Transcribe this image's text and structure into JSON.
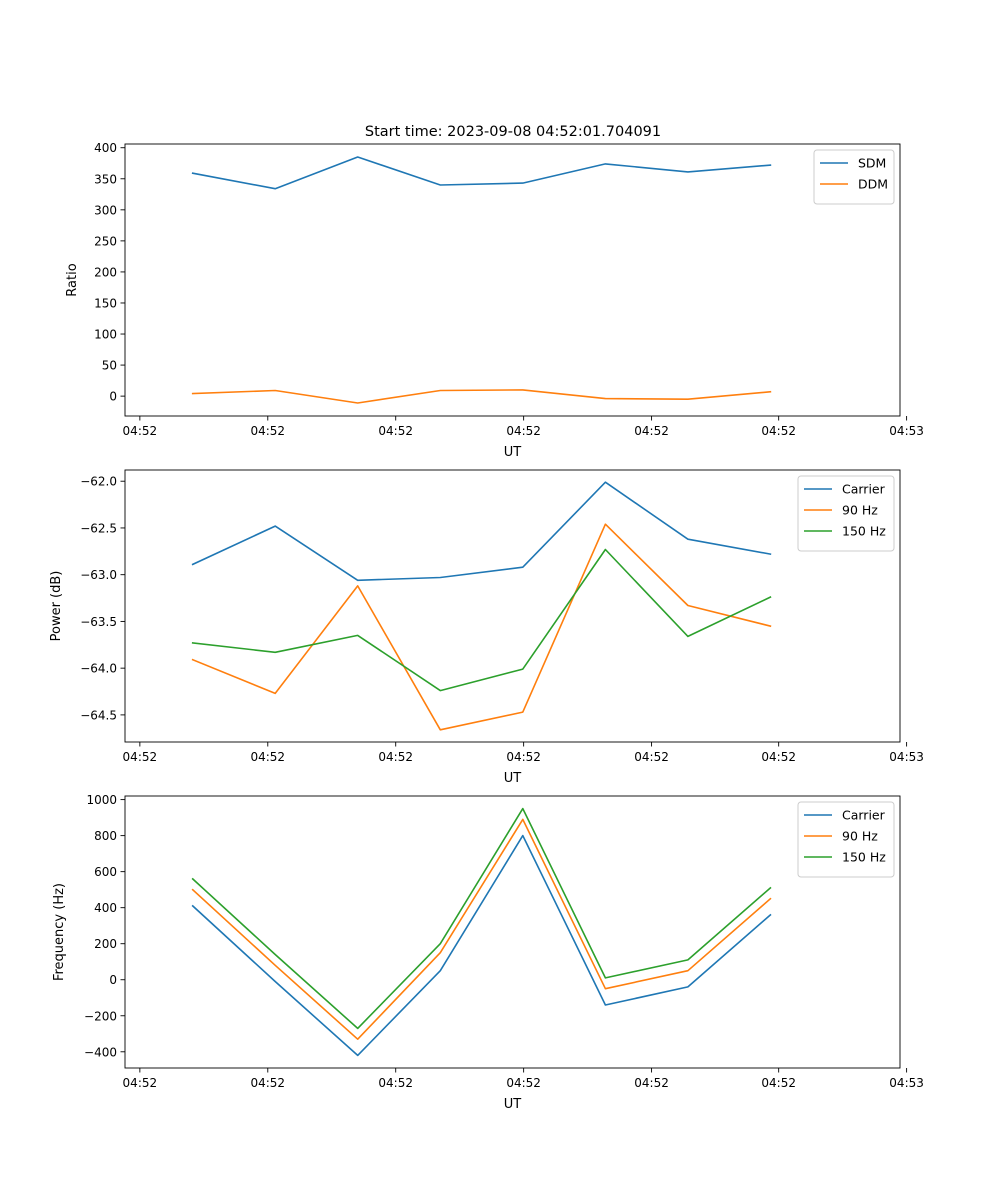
{
  "title": "Start time: 2023-09-08 04:52:01.704091",
  "colors": {
    "blue": "#1f77b4",
    "orange": "#ff7f0e",
    "green": "#2ca02c"
  },
  "chart_data": [
    {
      "type": "line",
      "title": "Start time: 2023-09-08 04:52:01.704091",
      "xlabel": "UT",
      "ylabel": "Ratio",
      "x": [
        1,
        2,
        3,
        4,
        5,
        6,
        7,
        8
      ],
      "xlim": [
        0.18,
        9.57
      ],
      "xticks": [
        0.36,
        1.91,
        3.46,
        5.01,
        6.56,
        8.1,
        9.65
      ],
      "xtick_labels": [
        "04:52",
        "04:52",
        "04:52",
        "04:52",
        "04:52",
        "04:52",
        "04:53"
      ],
      "ylim": [
        -32,
        406
      ],
      "yticks": [
        0,
        50,
        100,
        150,
        200,
        250,
        300,
        350,
        400
      ],
      "ytick_labels": [
        "0",
        "50",
        "100",
        "150",
        "200",
        "250",
        "300",
        "350",
        "400"
      ],
      "legend": "upper right",
      "series": [
        {
          "name": "SDM",
          "color": "#1f77b4",
          "values": [
            359,
            334,
            385,
            340,
            343,
            374,
            361,
            372
          ]
        },
        {
          "name": "DDM",
          "color": "#ff7f0e",
          "values": [
            4,
            9,
            -11,
            9,
            10,
            -4,
            -5,
            7
          ]
        }
      ]
    },
    {
      "type": "line",
      "xlabel": "UT",
      "ylabel": "Power (dB)",
      "x": [
        1,
        2,
        3,
        4,
        5,
        6,
        7,
        8
      ],
      "xlim": [
        0.18,
        9.57
      ],
      "xticks": [
        0.36,
        1.91,
        3.46,
        5.01,
        6.56,
        8.1,
        9.65
      ],
      "xtick_labels": [
        "04:52",
        "04:52",
        "04:52",
        "04:52",
        "04:52",
        "04:52",
        "04:53"
      ],
      "ylim": [
        -64.79,
        -61.88
      ],
      "yticks": [
        -64.5,
        -64.0,
        -63.5,
        -63.0,
        -62.5,
        -62.0
      ],
      "ytick_labels": [
        "−64.5",
        "−64.0",
        "−63.5",
        "−63.0",
        "−62.5",
        "−62.0"
      ],
      "legend": "upper right",
      "series": [
        {
          "name": "Carrier",
          "color": "#1f77b4",
          "values": [
            -62.89,
            -62.48,
            -63.06,
            -63.03,
            -62.92,
            -62.01,
            -62.62,
            -62.78
          ]
        },
        {
          "name": "90 Hz",
          "color": "#ff7f0e",
          "values": [
            -63.91,
            -64.27,
            -63.12,
            -64.66,
            -64.47,
            -62.46,
            -63.33,
            -63.55
          ]
        },
        {
          "name": "150 Hz",
          "color": "#2ca02c",
          "values": [
            -63.73,
            -63.83,
            -63.65,
            -64.24,
            -64.01,
            -62.73,
            -63.66,
            -63.24
          ]
        }
      ]
    },
    {
      "type": "line",
      "xlabel": "UT",
      "ylabel": "Frequency (Hz)",
      "x": [
        1,
        2,
        3,
        4,
        5,
        6,
        7,
        8
      ],
      "xlim": [
        0.18,
        9.57
      ],
      "xticks": [
        0.36,
        1.91,
        3.46,
        5.01,
        6.56,
        8.1,
        9.65
      ],
      "xtick_labels": [
        "04:52",
        "04:52",
        "04:52",
        "04:52",
        "04:52",
        "04:52",
        "04:53"
      ],
      "ylim": [
        -490,
        1020
      ],
      "yticks": [
        -400,
        -200,
        0,
        200,
        400,
        600,
        800,
        1000
      ],
      "ytick_labels": [
        "−400",
        "−200",
        "0",
        "200",
        "400",
        "600",
        "800",
        "1000"
      ],
      "legend": "upper right",
      "series": [
        {
          "name": "Carrier",
          "color": "#1f77b4",
          "values": [
            410,
            -10,
            -420,
            50,
            800,
            -140,
            -40,
            360
          ]
        },
        {
          "name": "90 Hz",
          "color": "#ff7f0e",
          "values": [
            500,
            80,
            -330,
            150,
            890,
            -50,
            50,
            450
          ]
        },
        {
          "name": "150 Hz",
          "color": "#2ca02c",
          "values": [
            560,
            140,
            -270,
            200,
            950,
            10,
            110,
            510
          ]
        }
      ]
    }
  ]
}
